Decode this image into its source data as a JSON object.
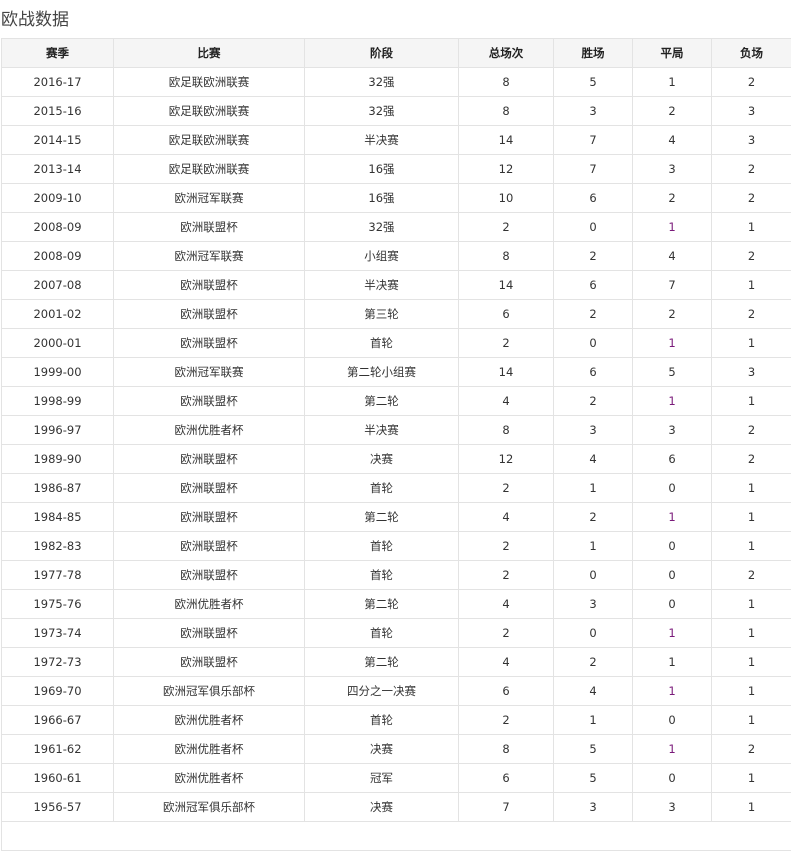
{
  "title": "欧战数据",
  "headers": [
    "赛季",
    "比赛",
    "阶段",
    "总场次",
    "胜场",
    "平局",
    "负场"
  ],
  "highlight_color": "#7a1a7a",
  "rows": [
    [
      "2016-17",
      "欧足联欧洲联赛",
      "32强",
      "8",
      "5",
      "1",
      "2",
      false
    ],
    [
      "2015-16",
      "欧足联欧洲联赛",
      "32强",
      "8",
      "3",
      "2",
      "3",
      false
    ],
    [
      "2014-15",
      "欧足联欧洲联赛",
      "半决赛",
      "14",
      "7",
      "4",
      "3",
      false
    ],
    [
      "2013-14",
      "欧足联欧洲联赛",
      "16强",
      "12",
      "7",
      "3",
      "2",
      false
    ],
    [
      "2009-10",
      "欧洲冠军联赛",
      "16强",
      "10",
      "6",
      "2",
      "2",
      false
    ],
    [
      "2008-09",
      "欧洲联盟杯",
      "32强",
      "2",
      "0",
      "1",
      "1",
      true
    ],
    [
      "2008-09",
      "欧洲冠军联赛",
      "小组赛",
      "8",
      "2",
      "4",
      "2",
      false
    ],
    [
      "2007-08",
      "欧洲联盟杯",
      "半决赛",
      "14",
      "6",
      "7",
      "1",
      false
    ],
    [
      "2001-02",
      "欧洲联盟杯",
      "第三轮",
      "6",
      "2",
      "2",
      "2",
      false
    ],
    [
      "2000-01",
      "欧洲联盟杯",
      "首轮",
      "2",
      "0",
      "1",
      "1",
      true
    ],
    [
      "1999-00",
      "欧洲冠军联赛",
      "第二轮小组赛",
      "14",
      "6",
      "5",
      "3",
      false
    ],
    [
      "1998-99",
      "欧洲联盟杯",
      "第二轮",
      "4",
      "2",
      "1",
      "1",
      true
    ],
    [
      "1996-97",
      "欧洲优胜者杯",
      "半决赛",
      "8",
      "3",
      "3",
      "2",
      false
    ],
    [
      "1989-90",
      "欧洲联盟杯",
      "决赛",
      "12",
      "4",
      "6",
      "2",
      false
    ],
    [
      "1986-87",
      "欧洲联盟杯",
      "首轮",
      "2",
      "1",
      "0",
      "1",
      false
    ],
    [
      "1984-85",
      "欧洲联盟杯",
      "第二轮",
      "4",
      "2",
      "1",
      "1",
      true
    ],
    [
      "1982-83",
      "欧洲联盟杯",
      "首轮",
      "2",
      "1",
      "0",
      "1",
      false
    ],
    [
      "1977-78",
      "欧洲联盟杯",
      "首轮",
      "2",
      "0",
      "0",
      "2",
      false
    ],
    [
      "1975-76",
      "欧洲优胜者杯",
      "第二轮",
      "4",
      "3",
      "0",
      "1",
      false
    ],
    [
      "1973-74",
      "欧洲联盟杯",
      "首轮",
      "2",
      "0",
      "1",
      "1",
      true
    ],
    [
      "1972-73",
      "欧洲联盟杯",
      "第二轮",
      "4",
      "2",
      "1",
      "1",
      false
    ],
    [
      "1969-70",
      "欧洲冠军俱乐部杯",
      "四分之一决赛",
      "6",
      "4",
      "1",
      "1",
      true
    ],
    [
      "1966-67",
      "欧洲优胜者杯",
      "首轮",
      "2",
      "1",
      "0",
      "1",
      false
    ],
    [
      "1961-62",
      "欧洲优胜者杯",
      "决赛",
      "8",
      "5",
      "1",
      "2",
      true
    ],
    [
      "1960-61",
      "欧洲优胜者杯",
      "冠军",
      "6",
      "5",
      "0",
      "1",
      false
    ],
    [
      "1956-57",
      "欧洲冠军俱乐部杯",
      "决赛",
      "7",
      "3",
      "3",
      "1",
      false
    ]
  ]
}
